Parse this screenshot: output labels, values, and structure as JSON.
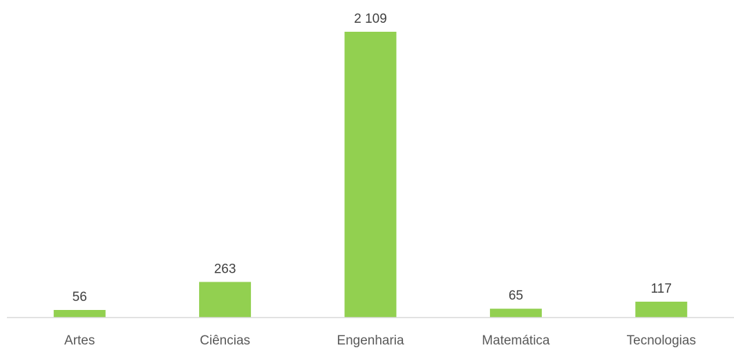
{
  "chart_data": {
    "type": "bar",
    "categories": [
      "Artes",
      "Ciências",
      "Engenharia",
      "Matemática",
      "Tecnologias"
    ],
    "values": [
      56,
      263,
      2109,
      65,
      117
    ],
    "value_labels": [
      "56",
      "263",
      "2 109",
      "65",
      "117"
    ],
    "title": "",
    "xlabel": "",
    "ylabel": "",
    "ylim": [
      0,
      2109
    ],
    "grid": false,
    "legend": "none",
    "bar_color": "#92d050",
    "axis_color": "#d9d9d9"
  }
}
